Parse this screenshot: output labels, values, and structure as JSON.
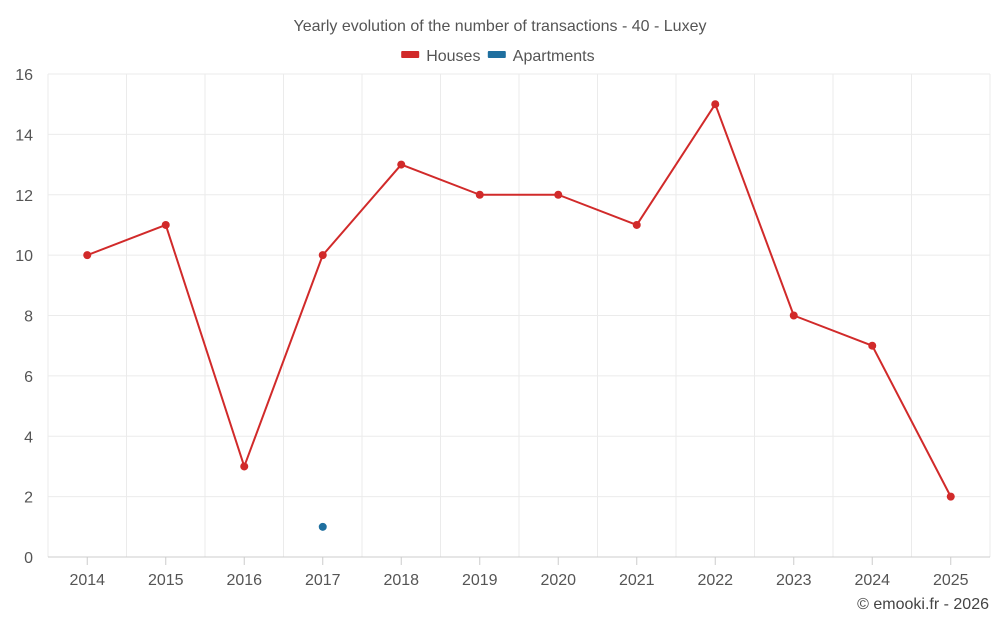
{
  "chart_data": {
    "type": "line",
    "title": "Yearly evolution of the number of transactions - 40 - Luxey",
    "xlabel": "",
    "ylabel": "",
    "categories": [
      "2014",
      "2015",
      "2016",
      "2017",
      "2018",
      "2019",
      "2020",
      "2021",
      "2022",
      "2023",
      "2024",
      "2025"
    ],
    "ylim": [
      0,
      16
    ],
    "yticks": [
      0,
      2,
      4,
      6,
      8,
      10,
      12,
      14,
      16
    ],
    "grid": true,
    "legend_position": "top-center",
    "series": [
      {
        "name": "Houses",
        "color": "#d12a2a",
        "values": [
          10,
          11,
          3,
          10,
          13,
          12,
          12,
          11,
          15,
          8,
          7,
          2
        ]
      },
      {
        "name": "Apartments",
        "color": "#1f6f9f",
        "values": [
          null,
          null,
          null,
          1,
          null,
          null,
          null,
          null,
          null,
          null,
          null,
          null
        ]
      }
    ]
  },
  "credit": "© emooki.fr - 2026"
}
